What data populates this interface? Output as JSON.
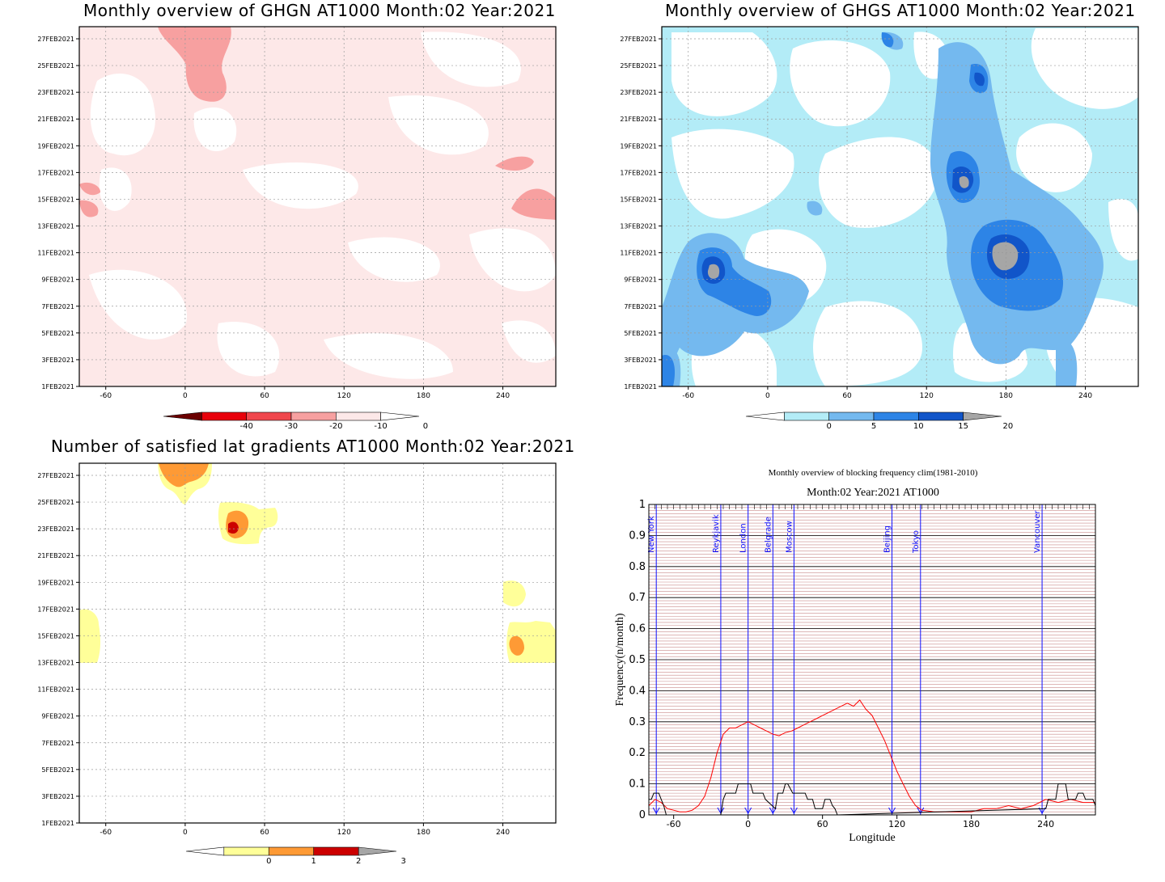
{
  "panels": {
    "ghgn": {
      "title": "Monthly overview of GHGN AT1000 Month:02 Year:2021",
      "colorbar": {
        "ticks": [
          "-40",
          "-30",
          "-20",
          "-10",
          "0"
        ],
        "colors": [
          "#6b0000",
          "#e8000b",
          "#f0474d",
          "#f7a0a0",
          "#fde8e8",
          "#ffffff"
        ]
      }
    },
    "ghgs": {
      "title": "Monthly overview of GHGS AT1000 Month:02 Year:2021",
      "colorbar": {
        "ticks": [
          "0",
          "5",
          "10",
          "15",
          "20"
        ],
        "colors": [
          "#ffffff",
          "#b3ecf7",
          "#74b9ef",
          "#2d84e6",
          "#1155c9",
          "#a6a6a6"
        ]
      }
    },
    "lat": {
      "title": "Number of satisfied lat gradients AT1000 Month:02 Year:2021",
      "colorbar": {
        "ticks": [
          "0",
          "1",
          "2",
          "3"
        ],
        "colors": [
          "#ffffff",
          "#ffff99",
          "#fe9a35",
          "#cc0000",
          "#a6a6a6"
        ]
      }
    },
    "freq": {
      "title": "Monthly overview of blocking frequency clim(1981-2010)",
      "subtitle": "Month:02 Year:2021  AT1000",
      "xlabel": "Longitude",
      "ylabel": "Frequency(n/month)"
    }
  },
  "map_axes": {
    "x_ticks": [
      -60,
      0,
      60,
      120,
      180,
      240
    ],
    "x_range": [
      -80,
      280
    ],
    "y_ticks": [
      "27FEB2021",
      "25FEB2021",
      "23FEB2021",
      "21FEB2021",
      "19FEB2021",
      "17FEB2021",
      "15FEB2021",
      "13FEB2021",
      "11FEB2021",
      "9FEB2021",
      "7FEB2021",
      "5FEB2021",
      "3FEB2021",
      "1FEB2021"
    ]
  },
  "chart_data": [
    {
      "type": "heatmap",
      "title": "Monthly overview of GHGN AT1000 Month:02 Year:2021",
      "x_range": [
        -80,
        280
      ],
      "y_range": [
        "1FEB2021",
        "28FEB2021"
      ],
      "colorbar_levels": [
        -40,
        -30,
        -20,
        -10,
        0
      ]
    },
    {
      "type": "heatmap",
      "title": "Monthly overview of GHGS AT1000 Month:02 Year:2021",
      "x_range": [
        -80,
        280
      ],
      "y_range": [
        "1FEB2021",
        "28FEB2021"
      ],
      "colorbar_levels": [
        0,
        5,
        10,
        15,
        20
      ]
    },
    {
      "type": "heatmap",
      "title": "Number of satisfied lat gradients AT1000 Month:02 Year:2021",
      "x_range": [
        -80,
        280
      ],
      "y_range": [
        "1FEB2021",
        "28FEB2021"
      ],
      "colorbar_levels": [
        0,
        1,
        2,
        3
      ]
    },
    {
      "type": "line",
      "title": "Monthly overview of blocking frequency clim(1981-2010)",
      "subtitle": "Month:02 Year:2021  AT1000",
      "xlabel": "Longitude",
      "ylabel": "Frequency(n/month)",
      "x_ticks": [
        -60,
        0,
        60,
        120,
        180,
        240
      ],
      "y_ticks": [
        0,
        0.1,
        0.2,
        0.3,
        0.4,
        0.5,
        0.6,
        0.7,
        0.8,
        0.9,
        1
      ],
      "xlim": [
        -80,
        280
      ],
      "ylim": [
        0,
        1
      ],
      "cities": [
        {
          "name": "New York",
          "lon": -74
        },
        {
          "name": "Reykjavik",
          "lon": -22
        },
        {
          "name": "London",
          "lon": 0
        },
        {
          "name": "Belgrade",
          "lon": 20
        },
        {
          "name": "Moscow",
          "lon": 37
        },
        {
          "name": "Beijing",
          "lon": 116
        },
        {
          "name": "Tokyo",
          "lon": 139
        },
        {
          "name": "Vancouver",
          "lon": 237
        }
      ],
      "series": [
        {
          "color": "#ff0000",
          "x": [
            -80,
            -75,
            -70,
            -65,
            -60,
            -55,
            -50,
            -45,
            -40,
            -35,
            -30,
            -25,
            -20,
            -15,
            -10,
            -5,
            0,
            5,
            10,
            15,
            20,
            25,
            30,
            35,
            40,
            45,
            50,
            55,
            60,
            65,
            70,
            75,
            80,
            85,
            90,
            95,
            100,
            105,
            110,
            115,
            120,
            125,
            130,
            135,
            140,
            150,
            160,
            170,
            180,
            190,
            200,
            210,
            220,
            230,
            240,
            250,
            260,
            270,
            280
          ],
          "y": [
            0.03,
            0.05,
            0.04,
            0.02,
            0.015,
            0.01,
            0.01,
            0.015,
            0.03,
            0.06,
            0.12,
            0.2,
            0.26,
            0.28,
            0.28,
            0.29,
            0.3,
            0.29,
            0.28,
            0.27,
            0.26,
            0.255,
            0.265,
            0.27,
            0.28,
            0.29,
            0.3,
            0.31,
            0.32,
            0.33,
            0.34,
            0.35,
            0.36,
            0.35,
            0.37,
            0.34,
            0.32,
            0.28,
            0.24,
            0.19,
            0.14,
            0.1,
            0.06,
            0.03,
            0.015,
            0.01,
            0.01,
            0.01,
            0.01,
            0.02,
            0.02,
            0.03,
            0.02,
            0.03,
            0.05,
            0.04,
            0.05,
            0.04,
            0.04
          ]
        },
        {
          "color": "#000000",
          "x": [
            -80,
            -78,
            -76,
            -72,
            -70,
            -68,
            -66,
            -40,
            -25,
            -22,
            -20,
            -18,
            -10,
            -8,
            2,
            4,
            12,
            14,
            22,
            24,
            28,
            30,
            32,
            36,
            38,
            46,
            48,
            52,
            54,
            60,
            62,
            66,
            68,
            70,
            72,
            240,
            242,
            248,
            250,
            256,
            258,
            264,
            266,
            270,
            272,
            278,
            280
          ],
          "y": [
            0.05,
            0.05,
            0.07,
            0.07,
            0.05,
            0.03,
            0.0,
            0.0,
            0.0,
            0.0,
            0.05,
            0.07,
            0.07,
            0.1,
            0.1,
            0.07,
            0.07,
            0.05,
            0.02,
            0.07,
            0.07,
            0.1,
            0.1,
            0.07,
            0.07,
            0.07,
            0.05,
            0.05,
            0.02,
            0.02,
            0.05,
            0.05,
            0.03,
            0.02,
            0.0,
            0.02,
            0.05,
            0.05,
            0.1,
            0.1,
            0.05,
            0.05,
            0.07,
            0.07,
            0.05,
            0.05,
            0.03
          ]
        }
      ]
    }
  ]
}
